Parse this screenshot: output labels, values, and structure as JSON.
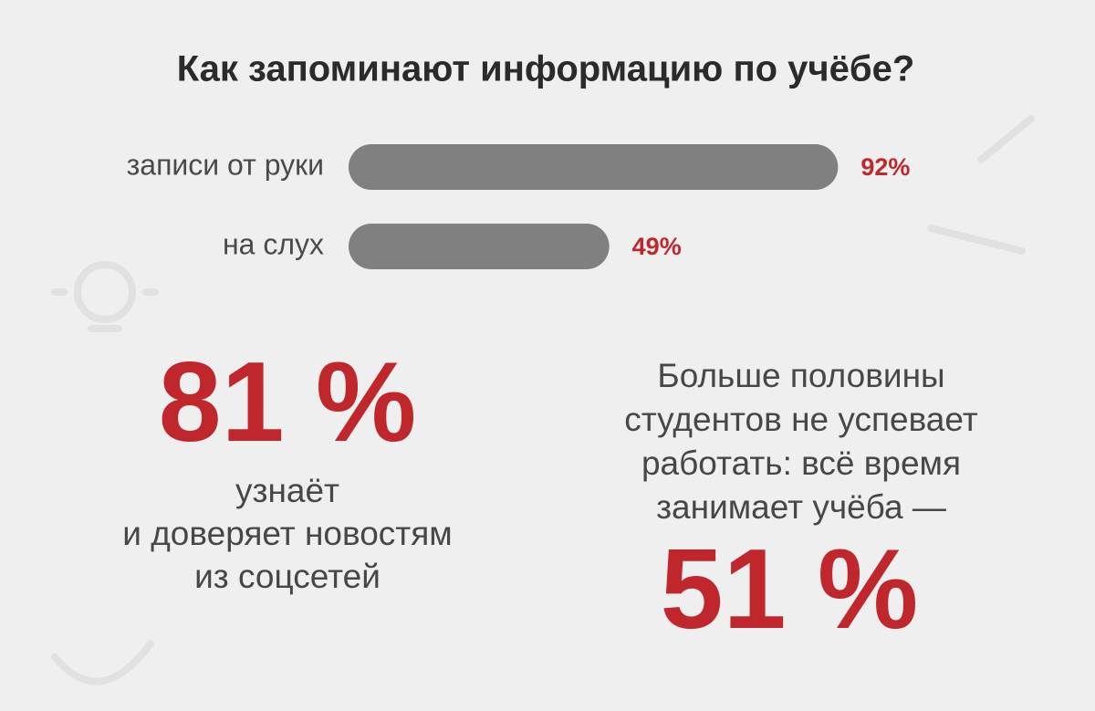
{
  "chart_data": {
    "type": "hbar",
    "title": "Как запоминают информацию по учёбе?",
    "categories": [
      "записи от руки",
      "на слух"
    ],
    "values": [
      92,
      49
    ],
    "value_labels": [
      "92%",
      "49%"
    ],
    "color": "#808080",
    "label_color": "#c0272d"
  },
  "stats": [
    {
      "figure": "81 %",
      "lines": [
        "узнаёт",
        "и доверяет новостям",
        "из соцсетей"
      ]
    },
    {
      "lines": [
        "Больше половины",
        "студентов не успевает",
        "работать: всё время",
        "занимает учёба —"
      ],
      "figure": "51 %"
    }
  ]
}
